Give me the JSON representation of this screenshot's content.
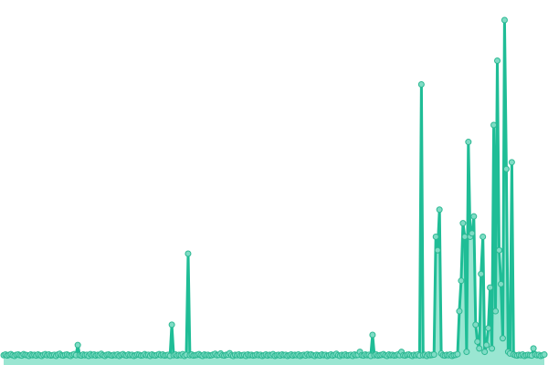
{
  "chart_data": {
    "type": "line",
    "title": "",
    "xlabel": "",
    "ylabel": "",
    "grid": false,
    "legend": "none",
    "ylim": [
      0,
      100
    ],
    "colors": {
      "line": "#1fbd96",
      "fill": "#8fe3cd",
      "point_fill": "#7fdcc5",
      "point_stroke": "#2cb892"
    },
    "values": [
      1,
      1.2,
      0.9,
      1.1,
      1.3,
      1,
      0.8,
      1.1,
      1.2,
      1,
      0.9,
      1.3,
      1.1,
      1,
      0.8,
      1.2,
      1,
      1.1,
      0.9,
      1.2,
      1,
      0.8,
      1.1,
      1.3,
      1,
      1.2,
      0.9,
      1,
      1.1,
      0.8,
      1.2,
      1.4,
      1,
      0.9,
      1.1,
      1.2,
      1,
      0.8,
      1.1,
      1.3,
      1,
      4,
      1,
      0.9,
      1.2,
      1,
      1.1,
      0.8,
      1.3,
      1,
      1.2,
      0.9,
      1.1,
      1,
      1.4,
      1,
      0.8,
      1.1,
      1.2,
      1,
      0.9,
      1.1,
      1,
      1.2,
      0.8,
      1.1,
      1.3,
      1,
      0.9,
      1.2,
      1,
      1.1,
      0.8,
      1,
      1.2,
      1.1,
      0.9,
      1,
      1.3,
      1,
      1.1,
      0.8,
      1.2,
      1,
      0.9,
      1.1,
      1.3,
      1,
      1.2,
      0.9,
      1,
      1.1,
      0.8,
      10,
      1,
      1.2,
      0.9,
      1.1,
      1,
      1.3,
      0.8,
      1.1,
      31,
      1,
      1.2,
      0.9,
      1,
      1.1,
      1.3,
      1,
      0.8,
      1.2,
      1,
      1.1,
      0.9,
      1,
      1.2,
      1.4,
      1,
      1.1,
      1.5,
      1,
      0.9,
      1.1,
      1.2,
      1.6,
      1,
      0.8,
      1.1,
      1,
      1.2,
      0.9,
      1,
      1.1,
      0.8,
      1.2,
      1,
      1.1,
      0.9,
      1,
      1.2,
      1,
      1.1,
      0.8,
      1,
      1.2,
      0.9,
      1.1,
      1,
      1.3,
      0.8,
      1,
      1.1,
      0.9,
      1.2,
      1,
      1.1,
      0.8,
      1,
      1.2,
      0.9,
      1.1,
      1,
      1.2,
      0.8,
      1,
      1.1,
      0.9,
      1.3,
      1,
      1.2,
      1,
      0.8,
      1.1,
      1,
      0.9,
      1.2,
      1,
      1.1,
      0.8,
      1,
      1.2,
      0.9,
      1.1,
      1.4,
      1,
      0.8,
      1.1,
      1,
      1.2,
      0.9,
      1,
      1.1,
      0.8,
      1.2,
      1,
      1.1,
      2,
      1,
      0.9,
      1.2,
      1,
      1.1,
      0.8,
      7,
      1,
      1.2,
      0.9,
      1,
      1.1,
      1.3,
      1,
      0.8,
      1.2,
      1,
      1.1,
      0.9,
      1,
      1.2,
      1,
      2,
      1,
      0.9,
      1.1,
      1.2,
      1,
      0.8,
      1.1,
      1,
      1.2,
      0.9,
      81,
      1,
      1.1,
      0.8,
      1.2,
      1,
      1.1,
      1.2,
      36,
      32,
      44,
      1.5,
      1,
      0.9,
      1.1,
      1,
      1.2,
      0.8,
      1,
      1.1,
      1.3,
      14,
      23,
      40,
      36,
      2,
      64,
      36,
      37,
      42,
      10,
      5,
      3,
      25,
      36,
      2,
      4,
      9,
      21,
      3,
      69,
      14,
      88,
      32,
      22,
      6,
      100,
      56,
      2,
      1.5,
      58,
      1.2,
      1,
      0.9,
      1.1,
      1,
      1.2,
      0.8,
      1,
      1.1,
      1,
      0.9,
      3,
      1.2,
      1,
      1.1,
      0.8,
      1,
      1.2
    ]
  }
}
